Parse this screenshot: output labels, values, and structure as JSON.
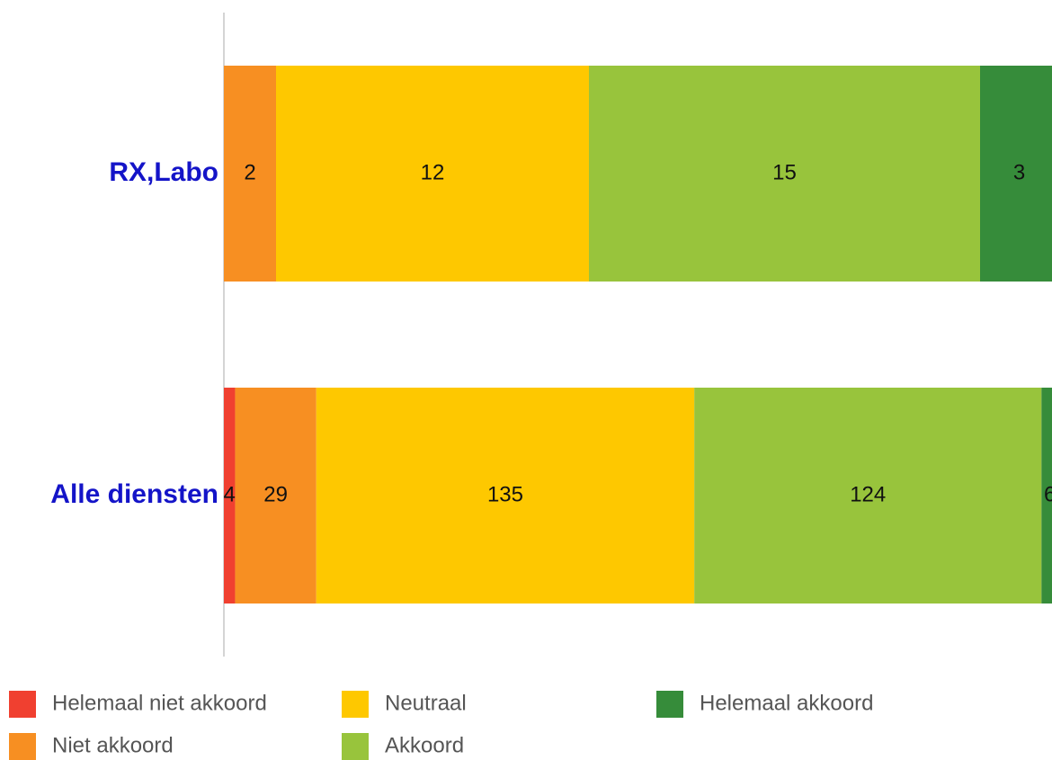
{
  "chart_data": {
    "type": "bar",
    "orientation": "horizontal",
    "stacking": "percent",
    "categories": [
      "RX,Labo",
      "Alle diensten"
    ],
    "series": [
      {
        "name": "Helemaal niet akkoord",
        "color": "#f04030",
        "values": [
          null,
          4
        ]
      },
      {
        "name": "Niet akkoord",
        "color": "#f78f22",
        "values": [
          2,
          29
        ]
      },
      {
        "name": "Neutraal",
        "color": "#fec800",
        "values": [
          12,
          135
        ]
      },
      {
        "name": "Akkoord",
        "color": "#98c43c",
        "values": [
          15,
          124
        ]
      },
      {
        "name": "Helemaal akkoord",
        "color": "#368c3a",
        "values": [
          3,
          6
        ]
      }
    ],
    "legend": "bottom"
  }
}
